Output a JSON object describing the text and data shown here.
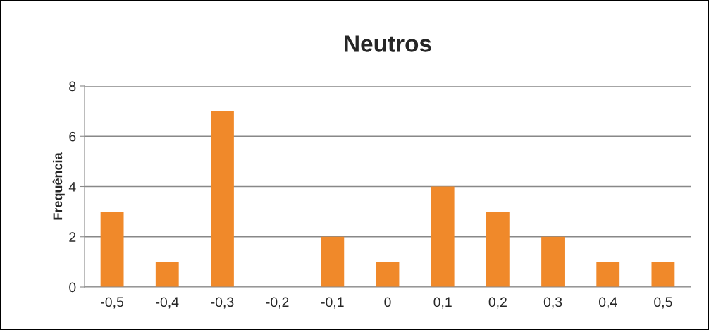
{
  "chart_data": {
    "type": "bar",
    "title": "Neutros",
    "ylabel": "Frequência",
    "categories": [
      "-0,5",
      "-0,4",
      "-0,3",
      "-0,2",
      "-0,1",
      "0",
      "0,1",
      "0,2",
      "0,3",
      "0,4",
      "0,5"
    ],
    "values": [
      3,
      1,
      7,
      0,
      2,
      1,
      4,
      3,
      2,
      1,
      1
    ],
    "color": "#f0892a",
    "ylim": [
      0,
      8
    ],
    "yticks": [
      0,
      2,
      4,
      6,
      8
    ],
    "grid": "y",
    "legend": false
  }
}
